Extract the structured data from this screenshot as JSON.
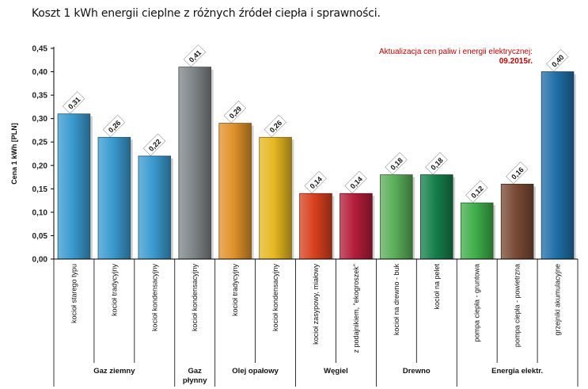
{
  "title": "Koszt 1 kWh energii cieplne z różnych źródeł ciepła i sprawności.",
  "note": {
    "line1": "Aktualizacja  cen paliw  i energii elektrycznej:",
    "line2": "09.2015r."
  },
  "chart_data": {
    "type": "bar",
    "ylabel": "Cena 1 kWh [PLN]",
    "ylim": [
      0,
      0.45
    ],
    "yticks": [
      "0,00",
      "0,05",
      "0,10",
      "0,15",
      "0,20",
      "0,25",
      "0,30",
      "0,35",
      "0,40",
      "0,45"
    ],
    "grid": false,
    "categories": [
      "kocioł starego typu",
      "kocioł tradycyjny",
      "kocioł kondensacyjny",
      "kocioł kondensacyjny",
      "kocioł tradycyjny",
      "kocioł kondensacyjny",
      "kocioł zasypowy, miałowy",
      "z podajnikiem, \"ekogroszek\"",
      "kocioł na drewno - buk",
      "kocioł na pelet",
      "pompa ciepła - gruntowa",
      "pompa ciepła - powietrzna",
      "grzejniki akumulacyjne"
    ],
    "values": [
      0.31,
      0.26,
      0.22,
      0.41,
      0.29,
      0.26,
      0.14,
      0.14,
      0.18,
      0.18,
      0.12,
      0.16,
      0.4
    ],
    "value_labels": [
      "0,31",
      "0,26",
      "0,22",
      "0,41",
      "0,29",
      "0,26",
      "0,14",
      "0,14",
      "0,18",
      "0,18",
      "0,12",
      "0,16",
      "0,40"
    ],
    "colors": [
      "#3a9bd0",
      "#3a9bd0",
      "#3a9bd0",
      "#7f8588",
      "#e0922a",
      "#e6b820",
      "#d8401e",
      "#b31d3a",
      "#5aae5a",
      "#15804a",
      "#3fae4a",
      "#7a4a35",
      "#1f6fa8"
    ],
    "groups": [
      {
        "label": "Gaz ziemny",
        "start": 0,
        "end": 2
      },
      {
        "label": "Gaz płynny",
        "start": 3,
        "end": 3
      },
      {
        "label": "Olej opałowy",
        "start": 4,
        "end": 5
      },
      {
        "label": "Węgiel",
        "start": 6,
        "end": 7
      },
      {
        "label": "Drewno",
        "start": 8,
        "end": 9
      },
      {
        "label": "Energia elektr.",
        "start": 10,
        "end": 12
      }
    ]
  }
}
